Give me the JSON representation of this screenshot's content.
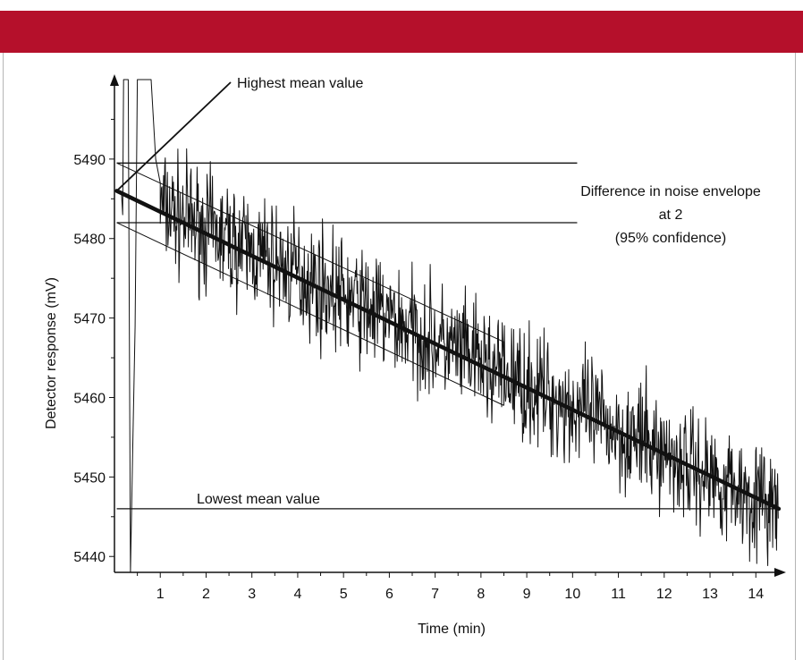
{
  "colors": {
    "header": "#b5102b",
    "ink": "#111111"
  },
  "chart_data": {
    "type": "line",
    "xlabel": "Time (min)",
    "ylabel": "Detector response (mV)",
    "xlim": [
      0,
      14.6
    ],
    "ylim": [
      5438,
      5500
    ],
    "x_ticks": [
      1,
      2,
      3,
      4,
      5,
      6,
      7,
      8,
      9,
      10,
      11,
      12,
      13,
      14
    ],
    "y_ticks": [
      5440,
      5450,
      5460,
      5470,
      5480,
      5490
    ],
    "grid": false,
    "series": [
      {
        "style": "noisy-signal",
        "start_spike": [
          [
            0.15,
            5486
          ],
          [
            0.18,
            5483
          ],
          [
            0.2,
            5500
          ],
          [
            0.3,
            5500
          ],
          [
            0.35,
            5438
          ],
          [
            0.4,
            5454
          ],
          [
            0.45,
            5469
          ],
          [
            0.5,
            5500
          ],
          [
            0.8,
            5500
          ],
          [
            0.9,
            5490
          ],
          [
            1.0,
            5487
          ]
        ],
        "x_range": [
          1.0,
          14.5
        ],
        "start_value": 5484,
        "end_value": 5446,
        "noise_pp": 8
      },
      {
        "style": "mean-trend",
        "x": [
          0.05,
          14.5
        ],
        "y": [
          5486,
          5446
        ]
      }
    ],
    "envelope": {
      "upper": [
        [
          0.05,
          5489.5
        ],
        [
          8.5,
          5467
        ]
      ],
      "lower": [
        [
          0.05,
          5482
        ],
        [
          8.5,
          5459
        ]
      ]
    },
    "reference_lines": [
      {
        "y": 5489.5,
        "x": [
          0.05,
          10.1
        ]
      },
      {
        "y": 5482,
        "x": [
          0.05,
          10.1
        ]
      },
      {
        "y": 5446,
        "x": [
          0.05,
          14.5
        ]
      }
    ],
    "annotations": {
      "highest": {
        "text": "Highest mean value",
        "x": 0.05,
        "y": 5486
      },
      "difference": [
        "Difference in noise envelope",
        "at 2",
        "(95% confidence)"
      ],
      "lowest": {
        "text": "Lowest mean value"
      }
    }
  }
}
